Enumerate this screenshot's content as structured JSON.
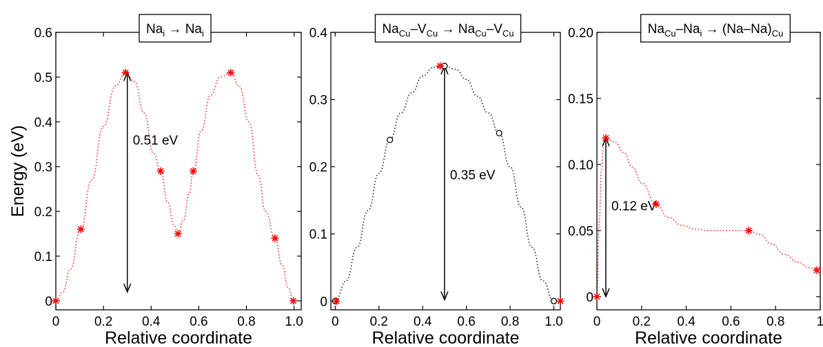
{
  "chart_data": [
    {
      "type": "line",
      "title_parts": [
        {
          "t": "Na",
          "sub": false
        },
        {
          "t": "i",
          "sub": true
        },
        {
          "t": " → Na",
          "sub": false
        },
        {
          "t": "i",
          "sub": true
        }
      ],
      "xlabel": "Relative coordinate",
      "ylabel": "Energy (eV)",
      "xlim": [
        0,
        1.03
      ],
      "ylim": [
        -0.02,
        0.6
      ],
      "xticks": [
        0,
        0.2,
        0.4,
        0.6,
        0.8,
        1
      ],
      "xtick_labels": [
        "0",
        "0.2",
        "0.4",
        "0.6",
        "0.8",
        "1.0"
      ],
      "yticks": [
        0,
        0.1,
        0.2,
        0.3,
        0.4,
        0.5,
        0.6
      ],
      "ytick_labels": [
        "0",
        "0.1",
        "0.2",
        "0.3",
        "0.4",
        "0.5",
        "0.6"
      ],
      "grid": false,
      "series": [
        {
          "marker": "asterisk",
          "color": "#ff0000",
          "x": [
            0,
            0.105,
            0.293,
            0.44,
            0.513,
            0.577,
            0.734,
            0.92,
            0.997
          ],
          "y": [
            0,
            0.16,
            0.51,
            0.29,
            0.15,
            0.29,
            0.51,
            0.14,
            0
          ]
        }
      ],
      "curve": {
        "color": "#ff0000",
        "x": [
          0,
          0.03,
          0.06,
          0.105,
          0.15,
          0.2,
          0.25,
          0.293,
          0.33,
          0.37,
          0.41,
          0.44,
          0.47,
          0.495,
          0.513,
          0.535,
          0.56,
          0.577,
          0.61,
          0.65,
          0.69,
          0.734,
          0.77,
          0.81,
          0.85,
          0.88,
          0.92,
          0.95,
          0.975,
          0.997
        ],
        "y": [
          0,
          0.02,
          0.07,
          0.16,
          0.27,
          0.39,
          0.48,
          0.51,
          0.49,
          0.42,
          0.33,
          0.29,
          0.22,
          0.17,
          0.15,
          0.18,
          0.24,
          0.29,
          0.38,
          0.46,
          0.5,
          0.51,
          0.48,
          0.4,
          0.28,
          0.2,
          0.14,
          0.08,
          0.03,
          0
        ]
      },
      "annotation": {
        "label": "0.51 eV",
        "x": 0.3,
        "y_from": 0.02,
        "y_to": 0.51
      }
    },
    {
      "type": "line",
      "title_parts": [
        {
          "t": "Na",
          "sub": false
        },
        {
          "t": "Cu",
          "sub": true
        },
        {
          "t": "–V",
          "sub": false
        },
        {
          "t": "Cu",
          "sub": true
        },
        {
          "t": " → Na",
          "sub": false
        },
        {
          "t": "Cu",
          "sub": true
        },
        {
          "t": "–V",
          "sub": false
        },
        {
          "t": "Cu",
          "sub": true
        }
      ],
      "xlabel": "Relative coordinate",
      "ylabel": "",
      "xlim": [
        -0.02,
        1.03
      ],
      "ylim": [
        -0.013,
        0.4
      ],
      "xticks": [
        0,
        0.2,
        0.4,
        0.6,
        0.8,
        1
      ],
      "xtick_labels": [
        "0",
        "0.2",
        "0.4",
        "0.6",
        "0.8",
        "1.0"
      ],
      "yticks": [
        0,
        0.1,
        0.2,
        0.3,
        0.4
      ],
      "ytick_labels": [
        "0",
        "0.1",
        "0.2",
        "0.3",
        "0.4"
      ],
      "grid": false,
      "series": [
        {
          "marker": "circle",
          "color": "#000000",
          "x": [
            0,
            0.25,
            0.5,
            0.75,
            1.0
          ],
          "y": [
            0,
            0.24,
            0.35,
            0.25,
            0
          ]
        },
        {
          "marker": "asterisk",
          "color": "#ff0000",
          "x": [
            0.005,
            0.48,
            1.03
          ],
          "y": [
            0,
            0.35,
            0
          ]
        }
      ],
      "curve": {
        "color": "#000000",
        "x": [
          0,
          0.05,
          0.1,
          0.15,
          0.2,
          0.25,
          0.3,
          0.35,
          0.4,
          0.45,
          0.5,
          0.55,
          0.6,
          0.65,
          0.7,
          0.75,
          0.8,
          0.85,
          0.9,
          0.95,
          1.0
        ],
        "y": [
          0,
          0.03,
          0.08,
          0.135,
          0.19,
          0.24,
          0.28,
          0.31,
          0.335,
          0.348,
          0.35,
          0.345,
          0.33,
          0.305,
          0.28,
          0.25,
          0.2,
          0.14,
          0.08,
          0.03,
          0
        ]
      },
      "annotation": {
        "label": "0.35 eV",
        "x": 0.5,
        "y_from": 0.002,
        "y_to": 0.35
      }
    },
    {
      "type": "line",
      "title_parts": [
        {
          "t": "Na",
          "sub": false
        },
        {
          "t": "Cu",
          "sub": true
        },
        {
          "t": "–Na",
          "sub": false
        },
        {
          "t": "i",
          "sub": true
        },
        {
          "t": " → (Na–Na)",
          "sub": false
        },
        {
          "t": "Cu",
          "sub": true
        }
      ],
      "xlabel": "Relative coordinate",
      "ylabel": "",
      "xlim": [
        0,
        1.0
      ],
      "ylim": [
        -0.01,
        0.2
      ],
      "xticks": [
        0,
        0.2,
        0.4,
        0.6,
        0.8,
        1
      ],
      "xtick_labels": [
        "0",
        "0.2",
        "0.4",
        "0.6",
        "0.8",
        "1"
      ],
      "yticks": [
        0,
        0.05,
        0.1,
        0.15,
        0.2
      ],
      "ytick_labels": [
        "0",
        "0.05",
        "0.10",
        "0.15",
        "0.20"
      ],
      "grid": false,
      "series": [
        {
          "marker": "asterisk",
          "color": "#ff0000",
          "x": [
            0,
            0.04,
            0.265,
            0.68,
            0.985
          ],
          "y": [
            0,
            0.12,
            0.07,
            0.05,
            0.02
          ]
        }
      ],
      "curve": {
        "color": "#ff0000",
        "x": [
          0,
          0.01,
          0.02,
          0.03,
          0.04,
          0.08,
          0.12,
          0.16,
          0.2,
          0.265,
          0.32,
          0.38,
          0.44,
          0.5,
          0.56,
          0.62,
          0.68,
          0.73,
          0.78,
          0.84,
          0.9,
          0.95,
          0.985
        ],
        "y": [
          0,
          0.055,
          0.095,
          0.115,
          0.12,
          0.117,
          0.109,
          0.098,
          0.086,
          0.07,
          0.06,
          0.054,
          0.051,
          0.05,
          0.05,
          0.05,
          0.05,
          0.047,
          0.04,
          0.032,
          0.026,
          0.022,
          0.02
        ]
      },
      "annotation": {
        "label": "0.12 eV",
        "x": 0.04,
        "y_from": 0.0,
        "y_to": 0.12
      }
    }
  ]
}
